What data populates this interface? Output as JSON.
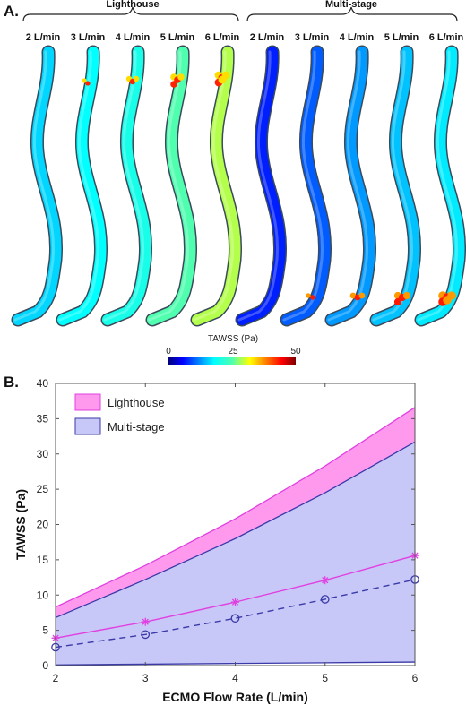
{
  "panel_a": {
    "letter": "A.",
    "groups": [
      {
        "name": "Lighthouse",
        "flows": [
          "2 L/min",
          "3 L/min",
          "4 L/min",
          "5 L/min",
          "6 L/min"
        ]
      },
      {
        "name": "Multi-stage",
        "flows": [
          "2 L/min",
          "3 L/min",
          "4 L/min",
          "5 L/min",
          "6 L/min"
        ]
      }
    ],
    "colorbar": {
      "title": "TAWSS (Pa)",
      "ticks": [
        "0",
        "25",
        "50"
      ],
      "min": 0,
      "max": 50,
      "colormap": "jet"
    },
    "vessel_color_levels": {
      "Lighthouse": [
        0.32,
        0.36,
        0.4,
        0.5,
        0.58
      ],
      "Multi-stage": [
        0.14,
        0.2,
        0.26,
        0.3,
        0.34
      ]
    }
  },
  "panel_b": {
    "letter": "B."
  },
  "chart_data": {
    "type": "line",
    "title": "",
    "xlabel": "ECMO Flow Rate (L/min)",
    "ylabel": "TAWSS (Pa)",
    "xlim": [
      2,
      6
    ],
    "ylim": [
      0,
      40
    ],
    "xticks": [
      2,
      3,
      4,
      5,
      6
    ],
    "yticks": [
      0,
      5,
      10,
      15,
      20,
      25,
      30,
      35,
      40
    ],
    "grid": false,
    "legend_position": "top-left",
    "x": [
      2,
      3,
      4,
      5,
      6
    ],
    "bands": [
      {
        "name": "Lighthouse",
        "color": "#ff99ee",
        "edge_color": "#e040e0",
        "upper": [
          8.3,
          14.2,
          20.8,
          28.3,
          36.6
        ],
        "lower": [
          0.2,
          0.3,
          0.4,
          0.5,
          0.6
        ]
      },
      {
        "name": "Multi-stage",
        "color": "#c8c8f8",
        "edge_color": "#3a3aa8",
        "upper": [
          6.8,
          12.2,
          18.0,
          24.5,
          31.7
        ],
        "lower": [
          0.1,
          0.2,
          0.3,
          0.4,
          0.5
        ]
      }
    ],
    "mean_lines": [
      {
        "band": "Lighthouse",
        "values": [
          3.9,
          6.2,
          9.0,
          12.1,
          15.6
        ],
        "color": "#e040e0",
        "marker": "asterisk",
        "style": "solid"
      },
      {
        "band": "Multi-stage",
        "values": [
          2.6,
          4.4,
          6.7,
          9.4,
          12.2
        ],
        "color": "#3a3aa8",
        "marker": "circle",
        "style": "dashed"
      }
    ]
  }
}
